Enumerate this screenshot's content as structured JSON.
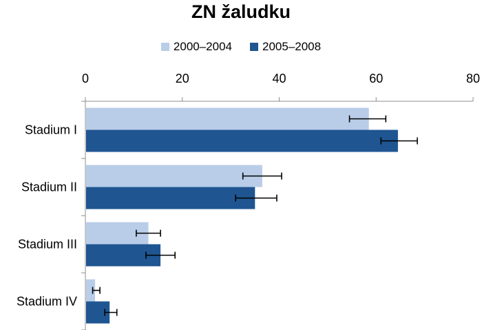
{
  "chart_data": {
    "type": "bar",
    "orientation": "horizontal",
    "title": "ZN žaludku",
    "categories": [
      "Stadium I",
      "Stadium II",
      "Stadium III",
      "Stadium IV"
    ],
    "series": [
      {
        "name": "2000–2004",
        "color": "#b9cde8",
        "values": [
          58.5,
          36.5,
          13,
          2
        ],
        "error_low": [
          54.5,
          32.5,
          10.5,
          1.5
        ],
        "error_high": [
          62,
          40.5,
          15.5,
          3
        ]
      },
      {
        "name": "2005–2008",
        "color": "#1f5591",
        "values": [
          64.5,
          35,
          15.5,
          5
        ],
        "error_low": [
          61,
          31,
          12.5,
          4
        ],
        "error_high": [
          68.5,
          39.5,
          18.5,
          6.5
        ]
      }
    ],
    "xlim": [
      0,
      80
    ],
    "xticks": [
      "0",
      "20",
      "40",
      "60",
      "80"
    ],
    "axis_position": "top",
    "legend_position": "top",
    "grid": false
  }
}
